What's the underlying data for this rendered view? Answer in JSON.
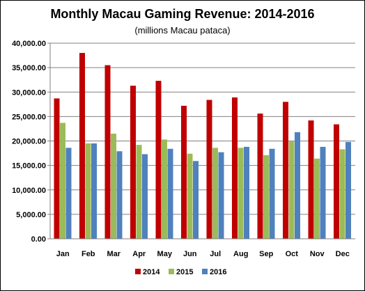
{
  "chart_data": {
    "type": "bar",
    "title": "Monthly Macau Gaming Revenue: 2014-2016",
    "subtitle": "(millions Macau pataca)",
    "xlabel": "",
    "ylabel": "",
    "ylim": [
      0,
      40000
    ],
    "yticks": [
      "0.00",
      "5,000.00",
      "10,000.00",
      "15,000.00",
      "20,000.00",
      "25,000.00",
      "30,000.00",
      "35,000.00",
      "40,000.00"
    ],
    "grid": true,
    "legend_position": "bottom",
    "categories": [
      "Jan",
      "Feb",
      "Mar",
      "Apr",
      "May",
      "Jun",
      "Jul",
      "Aug",
      "Sep",
      "Oct",
      "Nov",
      "Dec"
    ],
    "series": [
      {
        "name": "2014",
        "color": "#C00000",
        "values": [
          28700,
          38000,
          35500,
          31300,
          32300,
          27200,
          28400,
          28900,
          25600,
          28000,
          24200,
          23400
        ]
      },
      {
        "name": "2015",
        "color": "#9BBB59",
        "values": [
          23700,
          19500,
          21500,
          19200,
          20300,
          17400,
          18600,
          18600,
          17100,
          19900,
          16400,
          18300
        ]
      },
      {
        "name": "2016",
        "color": "#4F81BD",
        "values": [
          18600,
          19500,
          17900,
          17300,
          18400,
          15900,
          17700,
          18800,
          18400,
          21800,
          18800,
          19800
        ]
      }
    ]
  }
}
